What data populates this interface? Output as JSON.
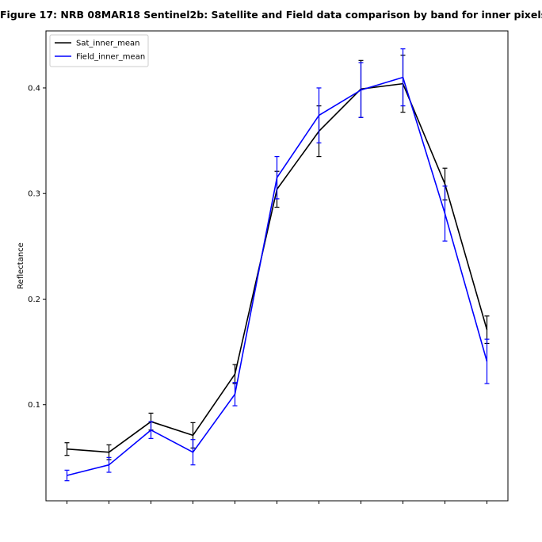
{
  "chart_data": {
    "type": "line",
    "title": "Figure 17: NRB 08MAR18  Sentinel2b: Satellite and Field data comparison by band for inner pixels",
    "xlabel": "",
    "ylabel": "Reflectance",
    "ylim": [
      0.009,
      0.454
    ],
    "yticks": [
      0.1,
      0.2,
      0.3,
      0.4
    ],
    "ytick_labels": [
      "0.1",
      "0.2",
      "0.3",
      "0.4"
    ],
    "xticks": [
      1,
      2,
      3,
      4,
      5,
      6,
      7,
      8,
      9,
      10,
      11
    ],
    "xtick_labels": [],
    "xlim": [
      0.5,
      11.5
    ],
    "grid": false,
    "legend_position": "upper-left",
    "series": [
      {
        "name": "Sat_inner_mean",
        "color": "#000000",
        "x": [
          1,
          2,
          3,
          4,
          5,
          6,
          7,
          8,
          9,
          10,
          11
        ],
        "values": [
          0.058,
          0.055,
          0.084,
          0.071,
          0.129,
          0.304,
          0.359,
          0.399,
          0.404,
          0.309,
          0.171
        ],
        "errors": [
          0.006,
          0.007,
          0.008,
          0.012,
          0.009,
          0.017,
          0.024,
          0.027,
          0.027,
          0.015,
          0.013
        ]
      },
      {
        "name": "Field_inner_mean",
        "color": "#0000ff",
        "x": [
          1,
          2,
          3,
          4,
          5,
          6,
          7,
          8,
          9,
          10,
          11
        ],
        "values": [
          0.033,
          0.043,
          0.076,
          0.055,
          0.11,
          0.315,
          0.374,
          0.398,
          0.41,
          0.281,
          0.141
        ],
        "errors": [
          0.005,
          0.007,
          0.008,
          0.012,
          0.011,
          0.02,
          0.026,
          0.026,
          0.027,
          0.026,
          0.021
        ]
      }
    ]
  }
}
